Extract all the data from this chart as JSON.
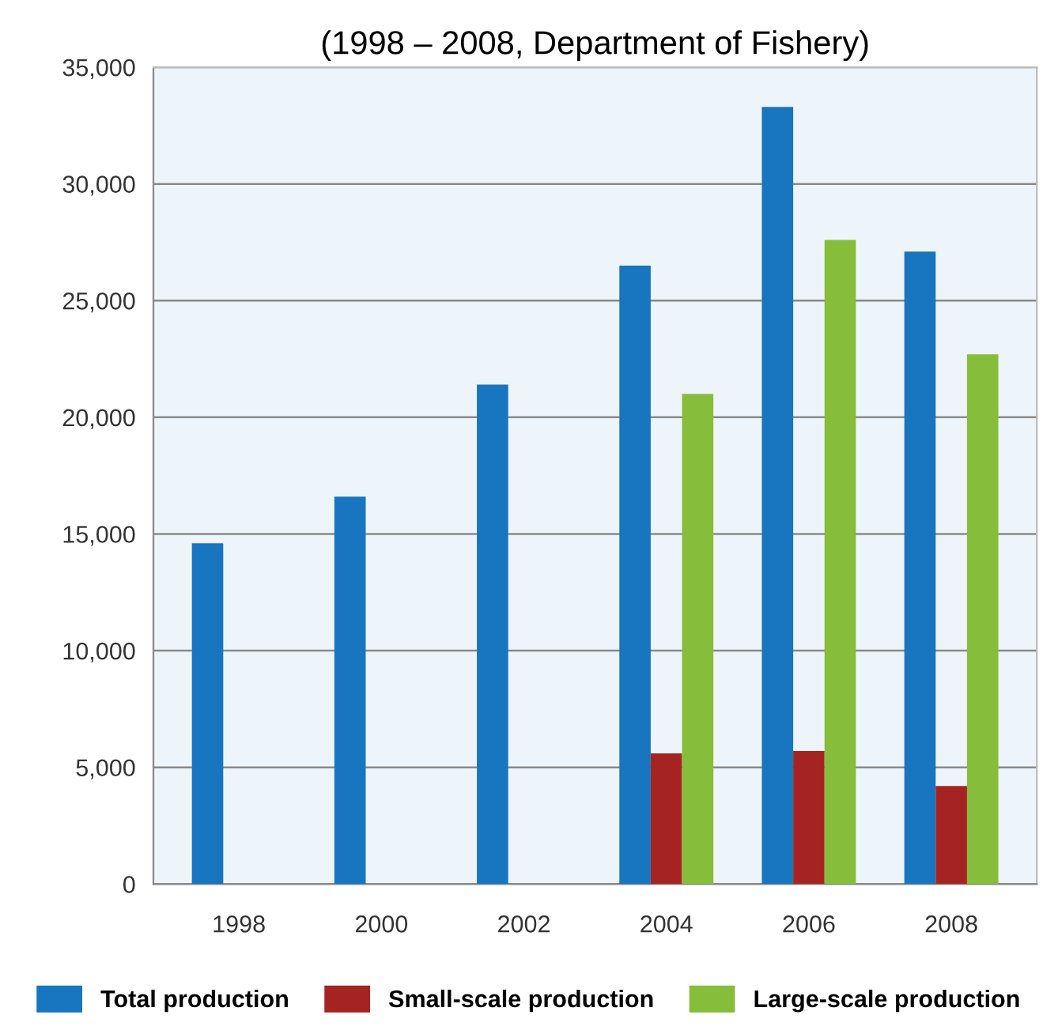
{
  "chart_data": {
    "type": "bar",
    "title": "(1998 – 2008, Department of Fishery)",
    "categories": [
      "1998",
      "2000",
      "2002",
      "2004",
      "2006",
      "2008"
    ],
    "series": [
      {
        "name": "Total production",
        "color": "#1776bf",
        "values": [
          14600,
          16600,
          21400,
          26500,
          33300,
          27100
        ]
      },
      {
        "name": "Small-scale production",
        "color": "#a52422",
        "values": [
          null,
          null,
          null,
          5600,
          5700,
          4200
        ]
      },
      {
        "name": "Large-scale production",
        "color": "#86bd3a",
        "values": [
          null,
          null,
          null,
          21000,
          27600,
          22700
        ]
      }
    ],
    "ylim": [
      0,
      35000
    ],
    "yticks": [
      {
        "value": 0,
        "label": "0"
      },
      {
        "value": 5000,
        "label": "5,000"
      },
      {
        "value": 10000,
        "label": "10,000"
      },
      {
        "value": 15000,
        "label": "15,000"
      },
      {
        "value": 20000,
        "label": "20,000"
      },
      {
        "value": 25000,
        "label": "25,000"
      },
      {
        "value": 30000,
        "label": "30,000"
      },
      {
        "value": 35000,
        "label": "35,000"
      }
    ],
    "grid": "y",
    "legend": "bottom"
  }
}
